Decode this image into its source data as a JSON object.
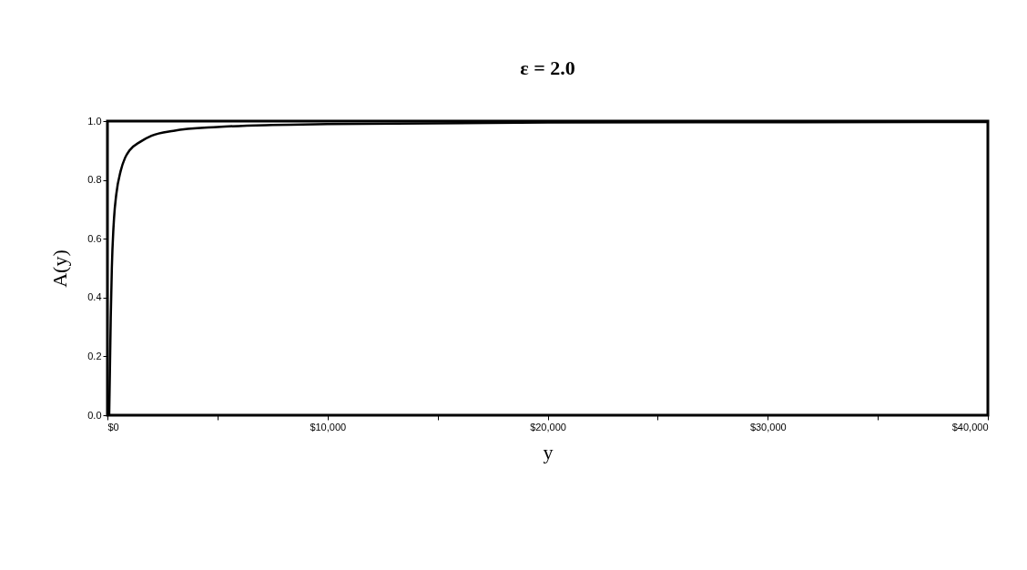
{
  "chart_data": {
    "type": "line",
    "title": "ε = 2.0",
    "xlabel": "y",
    "ylabel": "A(y)",
    "x": [
      80,
      150,
      200,
      300,
      400,
      600,
      800,
      1000,
      1500,
      2000,
      3000,
      5000,
      7500,
      10000,
      20000,
      40000
    ],
    "series": [
      {
        "color": "#000000",
        "values": [
          0,
          0.33,
          0.5,
          0.67,
          0.75,
          0.83,
          0.875,
          0.9,
          0.93,
          0.95,
          0.967,
          0.98,
          0.987,
          0.99,
          0.995,
          0.997
        ]
      }
    ],
    "xlim": [
      0,
      40000
    ],
    "xticks": [
      {
        "value": 0,
        "label": "$0"
      },
      {
        "value": 5000,
        "label": null
      },
      {
        "value": 10000,
        "label": "$10,000"
      },
      {
        "value": 15000,
        "label": null
      },
      {
        "value": 20000,
        "label": "$20,000"
      },
      {
        "value": 25000,
        "label": null
      },
      {
        "value": 30000,
        "label": "$30,000"
      },
      {
        "value": 35000,
        "label": null
      },
      {
        "value": 40000,
        "label": "$40,000"
      }
    ],
    "ylim": [
      0,
      1
    ],
    "yticks": [
      {
        "value": 0,
        "label": "0.0"
      },
      {
        "value": 0.2,
        "label": "0.2"
      },
      {
        "value": 0.4,
        "label": "0.4"
      },
      {
        "value": 0.6,
        "label": "0.6"
      },
      {
        "value": 0.8,
        "label": "0.8"
      },
      {
        "value": 1,
        "label": "1.0"
      }
    ],
    "grid": false,
    "marker": "none",
    "line_style": "solid"
  }
}
